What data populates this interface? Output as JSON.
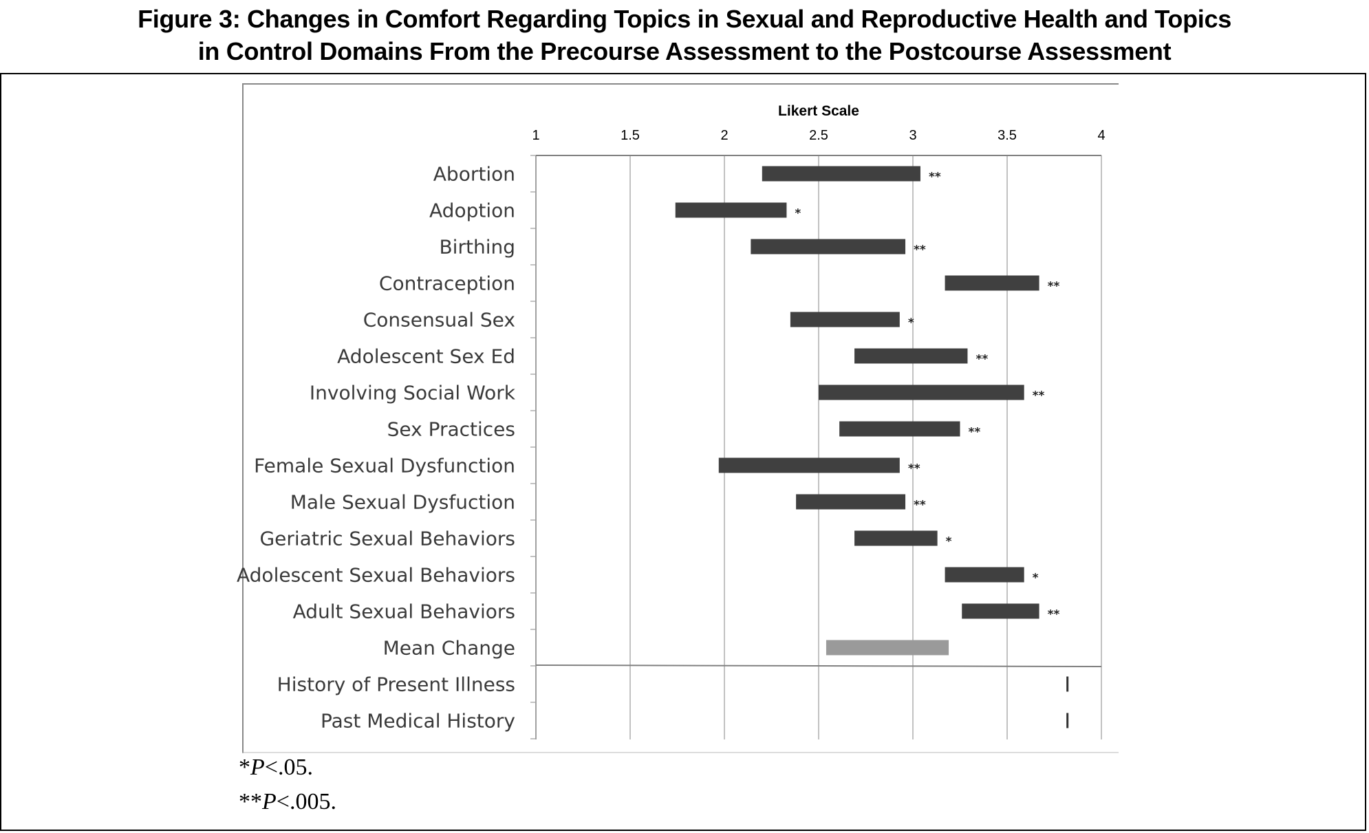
{
  "title": {
    "line1": "Figure 3: Changes in Comfort Regarding Topics in Sexual and Reproductive Health and Topics",
    "line2": "in Control Domains From the Precourse Assessment to the Postcourse Assessment"
  },
  "footnotes": {
    "f1_prefix": "*",
    "f1_p": "P",
    "f1_rest": "<.05.",
    "f2_prefix": "**",
    "f2_p": "P",
    "f2_rest": "<.005."
  },
  "colors": {
    "bar": "#404040",
    "mean_bar": "#9a9a9a",
    "grid": "#a0a0a0",
    "axis": "#808080"
  },
  "chart_data": {
    "type": "bar",
    "orientation": "horizontal",
    "style": "floating-range",
    "xlabel": "Likert Scale",
    "xlim": [
      1,
      4
    ],
    "xticks": [
      "1",
      "1.5",
      "2",
      "2.5",
      "3",
      "3.5",
      "4"
    ],
    "grid": true,
    "axis_position": "top",
    "categories": [
      "Abortion",
      "Adoption",
      "Birthing",
      "Contraception",
      "Consensual Sex",
      "Adolescent Sex Ed",
      "Involving Social Work",
      "Sex Practices",
      "Female Sexual Dysfunction",
      "Male Sexual Dysfuction",
      "Geriatric Sexual Behaviors",
      "Adolescent Sexual Behaviors",
      "Adult Sexual Behaviors",
      "Mean Change",
      "History of Present Illness",
      "Past Medical History"
    ],
    "series": [
      {
        "name": "",
        "start": [
          2.2,
          1.74,
          2.14,
          3.17,
          2.35,
          2.69,
          2.5,
          2.61,
          1.97,
          2.38,
          2.69,
          3.17,
          3.26,
          2.54,
          3.82,
          3.82
        ],
        "end": [
          3.04,
          2.33,
          2.96,
          3.67,
          2.93,
          3.29,
          3.59,
          3.25,
          2.93,
          2.96,
          3.13,
          3.59,
          3.67,
          3.19,
          3.82,
          3.82
        ],
        "significance": [
          "**",
          "*",
          "**",
          "**",
          "*",
          "**",
          "**",
          "**",
          "**",
          "**",
          "*",
          "*",
          "**",
          "",
          "",
          ""
        ]
      }
    ],
    "control_domain_divider_after": "Mean Change"
  }
}
